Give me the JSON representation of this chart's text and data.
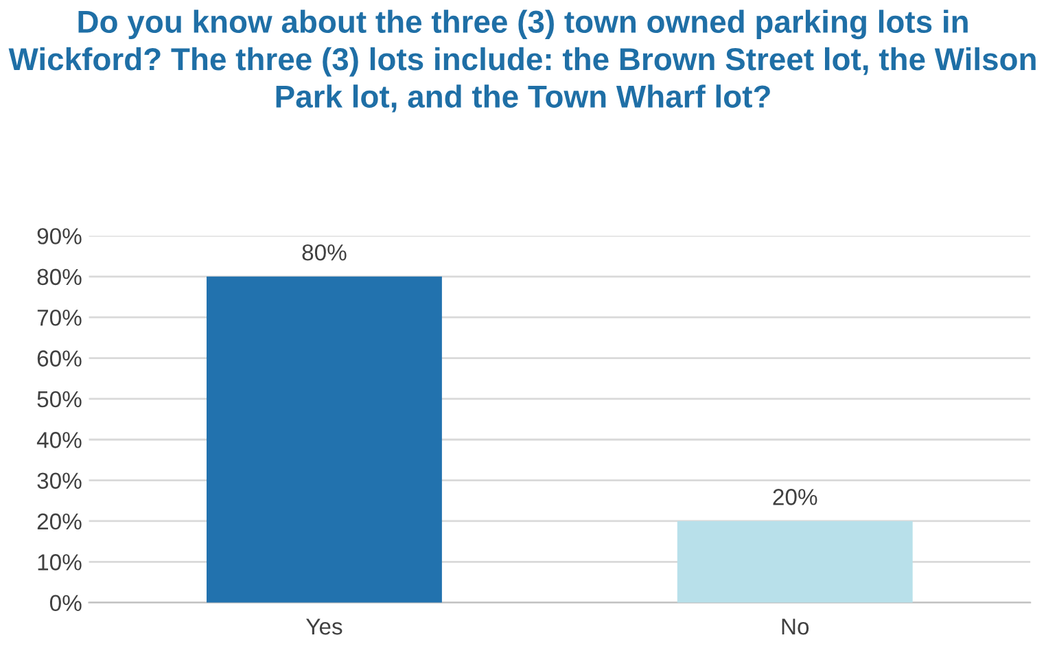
{
  "chart_data": {
    "type": "bar",
    "title": "Do you know about the three (3) town owned parking lots in Wickford? The three (3) lots include: the Brown Street lot, the Wilson Park lot, and the Town Wharf lot?",
    "categories": [
      "Yes",
      "No"
    ],
    "values": [
      80,
      20
    ],
    "colors": [
      "#2272ae",
      "#b8e0ea"
    ],
    "value_labels": [
      "80%",
      "20%"
    ],
    "ylim": [
      0,
      90
    ],
    "yticks": [
      {
        "value": 0,
        "label": "0%"
      },
      {
        "value": 10,
        "label": "10%"
      },
      {
        "value": 20,
        "label": "20%"
      },
      {
        "value": 30,
        "label": "30%"
      },
      {
        "value": 40,
        "label": "40%"
      },
      {
        "value": 50,
        "label": "50%"
      },
      {
        "value": 60,
        "label": "60%"
      },
      {
        "value": 70,
        "label": "70%"
      },
      {
        "value": 80,
        "label": "80%"
      },
      {
        "value": 90,
        "label": "90%"
      }
    ],
    "grid": "y",
    "legend": false
  }
}
